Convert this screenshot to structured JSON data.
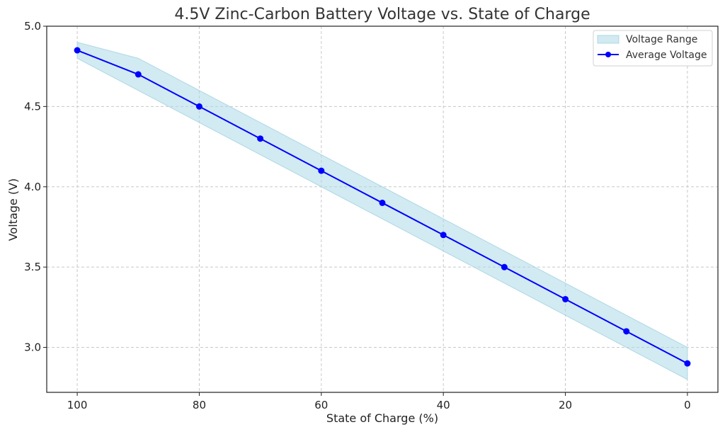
{
  "chart_data": {
    "type": "line",
    "title": "4.5V Zinc-Carbon Battery Voltage vs. State of Charge",
    "xlabel": "State of Charge (%)",
    "ylabel": "Voltage (V)",
    "x": [
      100,
      90,
      80,
      70,
      60,
      50,
      40,
      30,
      20,
      10,
      0
    ],
    "xlim": [
      105,
      -5
    ],
    "ylim": [
      2.72,
      5.0
    ],
    "x_ticks": [
      100,
      80,
      60,
      40,
      20,
      0
    ],
    "y_ticks": [
      3.0,
      3.5,
      4.0,
      4.5,
      5.0
    ],
    "x_tick_labels": [
      "100",
      "80",
      "60",
      "40",
      "20",
      "0"
    ],
    "y_tick_labels": [
      "3.0",
      "3.5",
      "4.0",
      "4.5",
      "5.0"
    ],
    "grid": true,
    "legend_position": "top-right",
    "series": [
      {
        "name": "Voltage Range",
        "kind": "band",
        "color": "#add8e6",
        "lower": [
          4.8,
          4.6,
          4.4,
          4.2,
          4.0,
          3.8,
          3.6,
          3.4,
          3.2,
          3.0,
          2.8
        ],
        "upper": [
          4.9,
          4.8,
          4.6,
          4.4,
          4.2,
          4.0,
          3.8,
          3.6,
          3.4,
          3.2,
          3.0
        ]
      },
      {
        "name": "Average Voltage",
        "kind": "line",
        "color": "#0000ff",
        "marker": "circle",
        "values": [
          4.85,
          4.7,
          4.5,
          4.3,
          4.1,
          3.9,
          3.7,
          3.5,
          3.3,
          3.1,
          2.9
        ]
      }
    ]
  }
}
